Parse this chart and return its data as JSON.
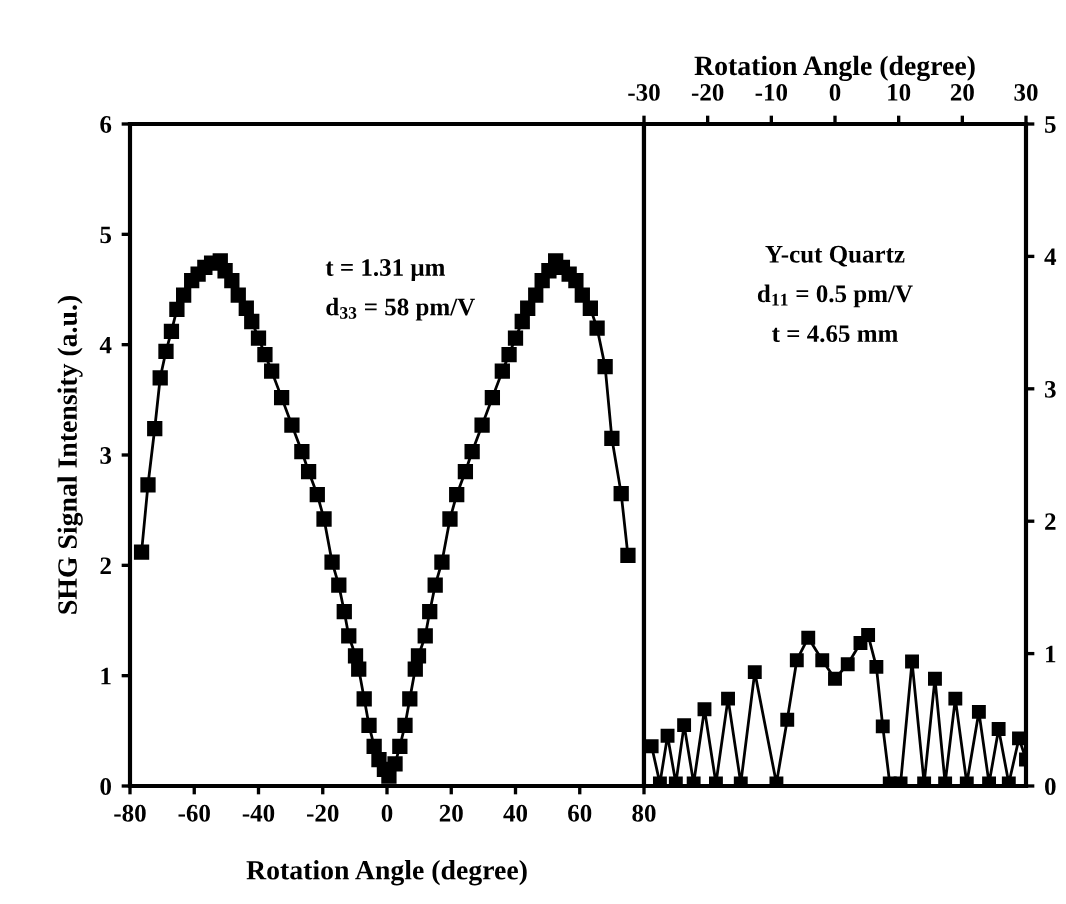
{
  "chart_data": [
    {
      "type": "line",
      "xlabel": "Rotation Angle (degree)",
      "ylabel": "SHG Signal Intensity (a.u.)",
      "xlim": [
        -80,
        80
      ],
      "xticks": [
        -80,
        -60,
        -40,
        -20,
        0,
        20,
        40,
        60,
        80
      ],
      "ylim": [
        0,
        6
      ],
      "yticks": [
        0,
        1,
        2,
        3,
        4,
        5,
        6
      ],
      "grid": false,
      "marker": "square",
      "line_style": "solid",
      "annotations": [
        {
          "text": "t = 1.31 μm"
        },
        {
          "text": "d$_{33}$ = 58 pm/V"
        }
      ],
      "series": [
        {
          "color": "#000000",
          "x": [
            -76.4,
            -74.4,
            -72.3,
            -70.6,
            -68.8,
            -67.1,
            -65.4,
            -63.3,
            -60.8,
            -58.8,
            -56.7,
            -54.6,
            -51.9,
            -50.4,
            -48.3,
            -46.3,
            -43.8,
            -42.1,
            -40.0,
            -38.0,
            -35.9,
            -32.8,
            -29.6,
            -26.5,
            -24.4,
            -21.7,
            -19.6,
            -17.1,
            -15.0,
            -13.3,
            -11.9,
            -9.8,
            -8.8,
            -7.1,
            -5.6,
            -4.0,
            -2.5,
            -0.8,
            0.6,
            2.5,
            4.0,
            5.6,
            7.1,
            8.8,
            9.8,
            11.9,
            13.3,
            15.0,
            17.1,
            19.6,
            21.7,
            24.4,
            26.5,
            29.6,
            32.8,
            35.9,
            38.0,
            40.0,
            42.1,
            43.8,
            46.3,
            48.3,
            50.4,
            52.5,
            54.6,
            56.7,
            58.8,
            60.8,
            63.3,
            65.4,
            67.9,
            70.0,
            72.9,
            75.0
          ],
          "values": [
            2.12,
            2.73,
            3.24,
            3.7,
            3.94,
            4.12,
            4.32,
            4.45,
            4.58,
            4.64,
            4.7,
            4.74,
            4.76,
            4.67,
            4.58,
            4.45,
            4.33,
            4.21,
            4.06,
            3.91,
            3.76,
            3.52,
            3.27,
            3.03,
            2.85,
            2.64,
            2.42,
            2.03,
            1.82,
            1.58,
            1.36,
            1.18,
            1.06,
            0.79,
            0.55,
            0.36,
            0.24,
            0.15,
            0.09,
            0.2,
            0.36,
            0.55,
            0.79,
            1.06,
            1.18,
            1.36,
            1.58,
            1.82,
            2.03,
            2.42,
            2.64,
            2.85,
            3.03,
            3.27,
            3.52,
            3.76,
            3.91,
            4.06,
            4.21,
            4.33,
            4.45,
            4.58,
            4.67,
            4.76,
            4.7,
            4.64,
            4.58,
            4.45,
            4.33,
            4.15,
            3.8,
            3.15,
            2.65,
            2.09
          ]
        }
      ]
    },
    {
      "type": "line",
      "xlabel": "Rotation Angle (degree)",
      "xlim": [
        -30,
        30
      ],
      "xticks": [
        -30,
        -20,
        -10,
        0,
        10,
        20,
        30
      ],
      "ylim": [
        0,
        5
      ],
      "yticks": [
        0,
        1,
        2,
        3,
        4,
        5
      ],
      "grid": false,
      "marker": "square",
      "line_style": "solid",
      "annotations": [
        {
          "text": "Y-cut Quartz"
        },
        {
          "text": "d$_{11}$ = 0.5 pm/V"
        },
        {
          "text": "t = 4.65 mm"
        }
      ],
      "series": [
        {
          "color": "#000000",
          "x": [
            -28.8,
            -27.5,
            -26.3,
            -25.0,
            -23.7,
            -22.2,
            -20.5,
            -18.7,
            -16.8,
            -14.8,
            -12.6,
            -9.2,
            -7.5,
            -6.0,
            -4.2,
            -2.0,
            0.0,
            2.0,
            4.0,
            5.2,
            6.5,
            7.5,
            8.6,
            10.3,
            12.1,
            14.0,
            15.7,
            17.3,
            18.9,
            20.7,
            22.6,
            24.2,
            25.7,
            27.3,
            28.9,
            30.0
          ],
          "values": [
            0.3,
            0.02,
            0.38,
            0.02,
            0.46,
            0.02,
            0.58,
            0.02,
            0.66,
            0.02,
            0.86,
            0.02,
            0.5,
            0.95,
            1.12,
            0.95,
            0.81,
            0.92,
            1.08,
            1.14,
            0.9,
            0.45,
            0.02,
            0.02,
            0.94,
            0.02,
            0.81,
            0.02,
            0.66,
            0.02,
            0.56,
            0.02,
            0.43,
            0.02,
            0.36,
            0.2
          ]
        }
      ]
    }
  ]
}
